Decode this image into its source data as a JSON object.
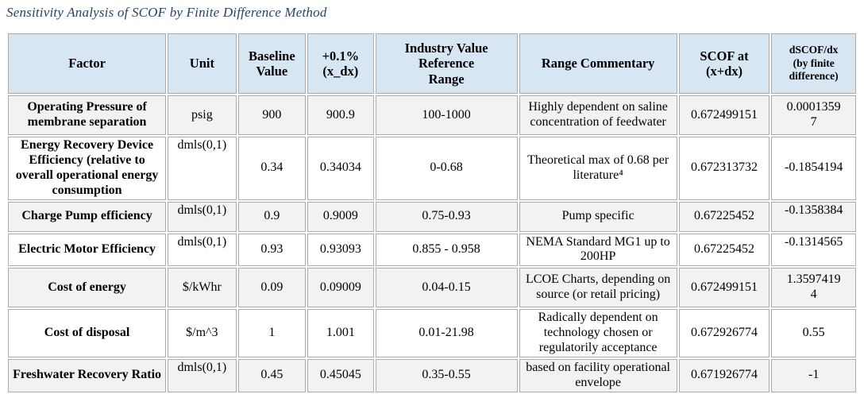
{
  "title": "Sensitivity Analysis of SCOF by Finite Difference Method",
  "colors": {
    "header_bg": "#d7e6f3",
    "band_row_bg": "#f2f2f2",
    "plain_row_bg": "#ffffff",
    "border": "#ababab",
    "title_color": "#26436a"
  },
  "table": {
    "columns": [
      {
        "key": "factor",
        "label": "Factor"
      },
      {
        "key": "unit",
        "label": "Unit"
      },
      {
        "key": "baseline",
        "label": "Baseline\nValue"
      },
      {
        "key": "plus",
        "label": "+0.1%\n(x_dx)"
      },
      {
        "key": "range",
        "label": "Industry Value\nReference\nRange"
      },
      {
        "key": "commentary",
        "label": "Range Commentary"
      },
      {
        "key": "scof",
        "label": "SCOF at\n(x+dx)"
      },
      {
        "key": "dscof",
        "label": "dSCOF/dx\n(by finite\ndifference)"
      }
    ],
    "rows": [
      {
        "factor": "Operating Pressure of membrane separation",
        "unit": "psig",
        "baseline": "900",
        "plus": "900.9",
        "range": "100-1000",
        "commentary": "Highly dependent on saline concentration of feedwater",
        "scof": "0.672499151",
        "dscof": "0.00013597"
      },
      {
        "factor": "Energy Recovery Device Efficiency (relative to overall operational energy consumption",
        "unit": "dmls(0,1)",
        "baseline": "0.34",
        "plus": "0.34034",
        "range": "0-0.68",
        "commentary": "Theoretical max of 0.68 per literature⁴",
        "scof": "0.672313732",
        "dscof": "-0.1854194"
      },
      {
        "factor": "Charge Pump efficiency",
        "unit": "dmls(0,1)",
        "baseline": "0.9",
        "plus": "0.9009",
        "range": "0.75-0.93",
        "commentary": "Pump specific",
        "scof": "0.67225452",
        "dscof": "-0.1358384"
      },
      {
        "factor": "Electric Motor Efficiency",
        "unit": "dmls(0,1)",
        "baseline": "0.93",
        "plus": "0.93093",
        "range": "0.855 - 0.958",
        "commentary": "NEMA Standard MG1 up to 200HP",
        "scof": "0.67225452",
        "dscof": "-0.1314565"
      },
      {
        "factor": "Cost of energy",
        "unit": "$/kWhr",
        "baseline": "0.09",
        "plus": "0.09009",
        "range": "0.04-0.15",
        "commentary": "LCOE Charts, depending on source (or retail pricing)",
        "scof": "0.672499151",
        "dscof": "1.35974194"
      },
      {
        "factor": "Cost of disposal",
        "unit": "$/m^3",
        "baseline": "1",
        "plus": "1.001",
        "range": "0.01-21.98",
        "commentary": "Radically dependent on technology chosen or regulatorily acceptance",
        "scof": "0.672926774",
        "dscof": "0.55"
      },
      {
        "factor": "Freshwater Recovery Ratio",
        "unit": "dmls(0,1)",
        "baseline": "0.45",
        "plus": "0.45045",
        "range": "0.35-0.55",
        "commentary": "based on facility operational envelope",
        "scof": "0.671926774",
        "dscof": "-1"
      }
    ]
  }
}
